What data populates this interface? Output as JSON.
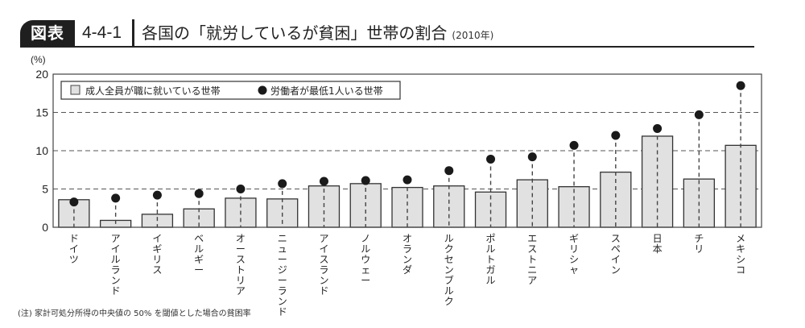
{
  "header": {
    "badge": "図表",
    "figure_number": "4-4-1",
    "title": "各国の「就労しているが貧困」世帯の割合",
    "year": "(2010年)"
  },
  "note": "(注) 家計可処分所得の中央値の 50% を閾値とした場合の貧困率",
  "colors": {
    "bar_fill": "#e1e1e1",
    "bar_stroke": "#333333",
    "dot": "#1a1a1a",
    "grid": "#555555",
    "badge_bg": "#1f1f1f"
  },
  "chart_data": {
    "type": "bar",
    "title": "各国の「就労しているが貧困」世帯の割合 (2010年)",
    "xlabel": "",
    "ylabel": "(%)",
    "ylim": [
      0,
      20
    ],
    "yticks": [
      0,
      5,
      10,
      15,
      20
    ],
    "grid": "horizontal dashed",
    "legend_position": "top-left",
    "categories": [
      "ドイツ",
      "アイルランド",
      "イギリス",
      "ベルギー",
      "オーストリア",
      "ニュージーランド",
      "アイスランド",
      "ノルウェー",
      "オランダ",
      "ルクセンブルク",
      "ポルトガル",
      "エストニア",
      "ギリシャ",
      "スペイン",
      "日本",
      "チリ",
      "メキシコ"
    ],
    "series": [
      {
        "name": "成人全員が職に就いている世帯",
        "mark": "bar",
        "values": [
          3.6,
          0.9,
          1.7,
          2.4,
          3.8,
          3.7,
          5.4,
          5.7,
          5.2,
          5.4,
          4.6,
          6.2,
          5.3,
          7.2,
          11.9,
          6.3,
          10.7
        ]
      },
      {
        "name": "労働者が最低1人いる世帯",
        "mark": "dot",
        "values": [
          3.3,
          3.8,
          4.2,
          4.4,
          5.0,
          5.7,
          6.0,
          6.1,
          6.2,
          7.4,
          8.9,
          9.2,
          10.7,
          12.0,
          12.9,
          14.7,
          18.5
        ]
      }
    ]
  }
}
